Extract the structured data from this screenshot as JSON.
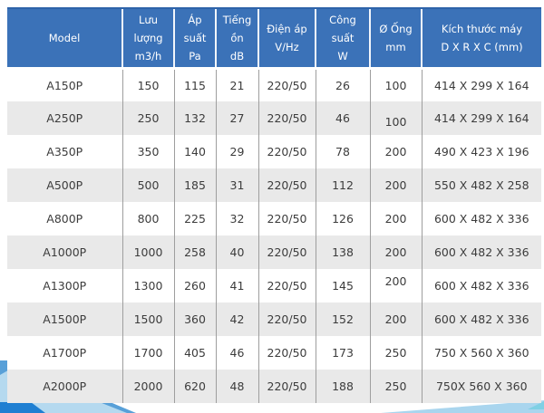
{
  "chart_data": {
    "type": "table",
    "title": "Product specification table",
    "columns": [
      "Model",
      "Lưu lượng\nm3/h",
      "Áp suất\nPa",
      "Tiếng ồn\ndB",
      "Điện áp\nV/Hz",
      "Công suất\nW",
      "Ø Ống\nmm",
      "Kích thước máy\nD X R X C (mm)"
    ],
    "rows": [
      [
        "A150P",
        "150",
        "115",
        "21",
        "220/50",
        "26",
        "100",
        "414 X 299 X 164"
      ],
      [
        "A250P",
        "250",
        "132",
        "27",
        "220/50",
        "46",
        "100",
        "414 X 299 X 164"
      ],
      [
        "A350P",
        "350",
        "140",
        "29",
        "220/50",
        "78",
        "200",
        "490 X 423 X 196"
      ],
      [
        "A500P",
        "500",
        "185",
        "31",
        "220/50",
        "112",
        "200",
        "550 X 482 X 258"
      ],
      [
        "A800P",
        "800",
        "225",
        "32",
        "220/50",
        "126",
        "200",
        "600 X 482 X 336"
      ],
      [
        "A1000P",
        "1000",
        "258",
        "40",
        "220/50",
        "138",
        "200",
        "600 X 482 X 336"
      ],
      [
        "A1300P",
        "1300",
        "260",
        "41",
        "220/50",
        "145",
        "200",
        "600 X 482 X 336"
      ],
      [
        "A1500P",
        "1500",
        "360",
        "42",
        "220/50",
        "152",
        "200",
        "600 X 482 X 336"
      ],
      [
        "A1700P",
        "1700",
        "405",
        "46",
        "220/50",
        "173",
        "250",
        "750 X 560 X 360"
      ],
      [
        "A2000P",
        "2000",
        "620",
        "48",
        "220/50",
        "188",
        "250",
        "750X 560 X 360"
      ]
    ],
    "layout": {
      "striped": true,
      "stripe_starts_on_row": 2,
      "header_lines_per_cell": 2
    }
  },
  "colors": {
    "header_bg": "#3b72b8",
    "header_top_edge": "#2e63a9",
    "header_text": "#ffffff",
    "row_stripe_bg": "#e9e9e9",
    "row_plain_bg": "#ffffff",
    "body_text": "#3c3c3c",
    "column_divider": "#9e9e9e",
    "decor_light_blue": "#b5d9ef",
    "decor_mid_blue": "#58a0d8",
    "decor_bright_blue": "#1f7fd2",
    "decor_teal": "#7fd0e4"
  }
}
